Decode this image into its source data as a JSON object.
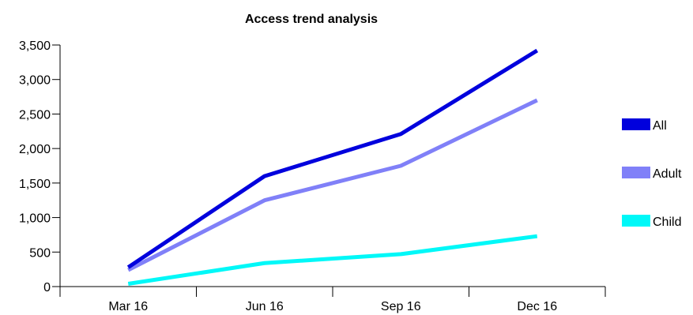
{
  "chart_data": {
    "type": "line",
    "title": "Access trend analysis",
    "xlabel": "",
    "ylabel": "",
    "categories": [
      "Mar 16",
      "Jun 16",
      "Sep 16",
      "Dec 16"
    ],
    "ylim": [
      0,
      3500
    ],
    "yticks": [
      0,
      500,
      1000,
      1500,
      2000,
      2500,
      3000,
      3500
    ],
    "ytick_labels": [
      "0",
      "500",
      "1,000",
      "1,500",
      "2,000",
      "2,500",
      "3,000",
      "3,500"
    ],
    "grid": false,
    "legend_position": "right",
    "series": [
      {
        "name": "All",
        "color": "#0000dd",
        "values": [
          280,
          1600,
          2210,
          3420
        ]
      },
      {
        "name": "Adult",
        "color": "#8080f8",
        "values": [
          240,
          1250,
          1750,
          2700
        ]
      },
      {
        "name": "Child",
        "color": "#00f8f8",
        "values": [
          40,
          340,
          470,
          730
        ]
      }
    ]
  }
}
